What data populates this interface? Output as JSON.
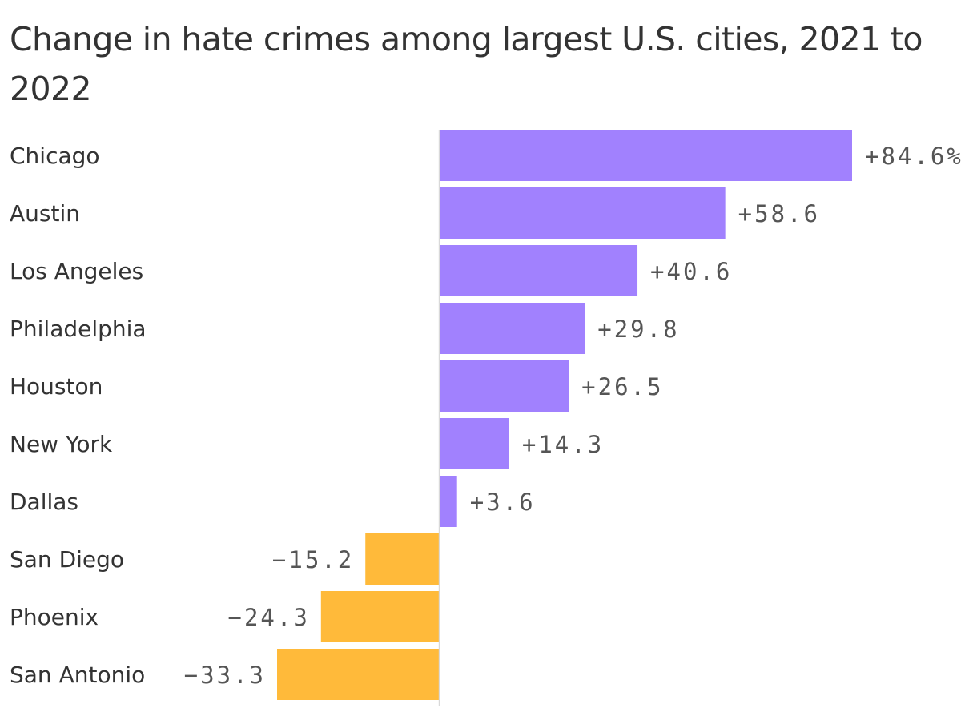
{
  "chart_data": {
    "type": "bar",
    "orientation": "horizontal",
    "title": "Change in hate crimes among largest U.S. cities, 2021 to 2022",
    "categories": [
      "Chicago",
      "Austin",
      "Los Angeles",
      "Philadelphia",
      "Houston",
      "New York",
      "Dallas",
      "San Diego",
      "Phoenix",
      "San Antonio"
    ],
    "values": [
      84.6,
      58.6,
      40.6,
      29.8,
      26.5,
      14.3,
      3.6,
      -15.2,
      -24.3,
      -33.3
    ],
    "value_labels": [
      "+84.6%",
      "+58.6",
      "+40.6",
      "+29.8",
      "+26.5",
      "+14.3",
      "+3.6",
      "−15.2",
      "−24.3",
      "−33.3"
    ],
    "unit": "%",
    "xlim": [
      -33.3,
      84.6
    ],
    "xlabel": "",
    "ylabel": "",
    "grid": false,
    "legend": "none",
    "colors": {
      "positive": "#a181fe",
      "negative": "#ffba3a",
      "baseline": "#d9d9d9"
    }
  }
}
